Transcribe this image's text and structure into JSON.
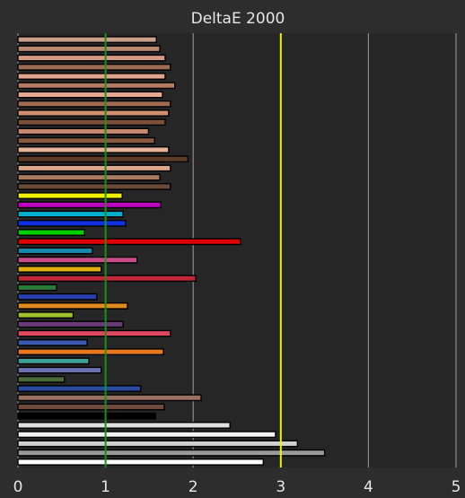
{
  "chart_data": {
    "type": "bar",
    "orientation": "horizontal",
    "title": "DeltaE 2000",
    "xlim": [
      0,
      5
    ],
    "x_ticks": [
      "0",
      "1",
      "2",
      "3",
      "4",
      "5"
    ],
    "grid": true,
    "reference_lines": [
      {
        "value": 1,
        "color": "#1a8f1a"
      },
      {
        "value": 3,
        "color": "#f2f200"
      }
    ],
    "bars": [
      {
        "value": 1.58,
        "color": "#caa08a"
      },
      {
        "value": 1.62,
        "color": "#b8886e"
      },
      {
        "value": 1.68,
        "color": "#d49a82"
      },
      {
        "value": 1.74,
        "color": "#9c6c54"
      },
      {
        "value": 1.68,
        "color": "#e0a58c"
      },
      {
        "value": 1.79,
        "color": "#b47a62"
      },
      {
        "value": 1.65,
        "color": "#e8a890"
      },
      {
        "value": 1.74,
        "color": "#a06a50"
      },
      {
        "value": 1.72,
        "color": "#d09070"
      },
      {
        "value": 1.68,
        "color": "#7a5038"
      },
      {
        "value": 1.49,
        "color": "#c58a70"
      },
      {
        "value": 1.56,
        "color": "#8a5a40"
      },
      {
        "value": 1.72,
        "color": "#e6b298"
      },
      {
        "value": 1.94,
        "color": "#5e3c2a"
      },
      {
        "value": 1.74,
        "color": "#dca688"
      },
      {
        "value": 1.62,
        "color": "#a87a5e"
      },
      {
        "value": 1.74,
        "color": "#6a4a36"
      },
      {
        "value": 1.19,
        "color": "#f0f000"
      },
      {
        "value": 1.63,
        "color": "#c000c0"
      },
      {
        "value": 1.2,
        "color": "#00b0d0"
      },
      {
        "value": 1.23,
        "color": "#1030e0"
      },
      {
        "value": 0.76,
        "color": "#00d000"
      },
      {
        "value": 2.54,
        "color": "#e00000"
      },
      {
        "value": 0.85,
        "color": "#1888a8"
      },
      {
        "value": 1.36,
        "color": "#c84a88"
      },
      {
        "value": 0.95,
        "color": "#e0b010"
      },
      {
        "value": 2.03,
        "color": "#c02838"
      },
      {
        "value": 0.44,
        "color": "#2a7a38"
      },
      {
        "value": 0.9,
        "color": "#2a40b0"
      },
      {
        "value": 1.25,
        "color": "#e08a20"
      },
      {
        "value": 0.63,
        "color": "#a0c030"
      },
      {
        "value": 1.2,
        "color": "#6a3a78"
      },
      {
        "value": 1.74,
        "color": "#e04860"
      },
      {
        "value": 0.79,
        "color": "#3a5ab0"
      },
      {
        "value": 1.66,
        "color": "#e87820"
      },
      {
        "value": 0.81,
        "color": "#40a098"
      },
      {
        "value": 0.95,
        "color": "#6a70b0"
      },
      {
        "value": 0.53,
        "color": "#4a6a38"
      },
      {
        "value": 1.4,
        "color": "#2a4aa0"
      },
      {
        "value": 2.09,
        "color": "#9a7060"
      },
      {
        "value": 1.67,
        "color": "#704a3c"
      },
      {
        "value": 1.57,
        "color": "#000000"
      },
      {
        "value": 2.42,
        "color": "#e0e0e0"
      },
      {
        "value": 2.94,
        "color": "#f4f4f4"
      },
      {
        "value": 3.19,
        "color": "#d0d0d0"
      },
      {
        "value": 3.5,
        "color": "#9a9a9a"
      },
      {
        "value": 2.8,
        "color": "#ffffff"
      }
    ]
  }
}
